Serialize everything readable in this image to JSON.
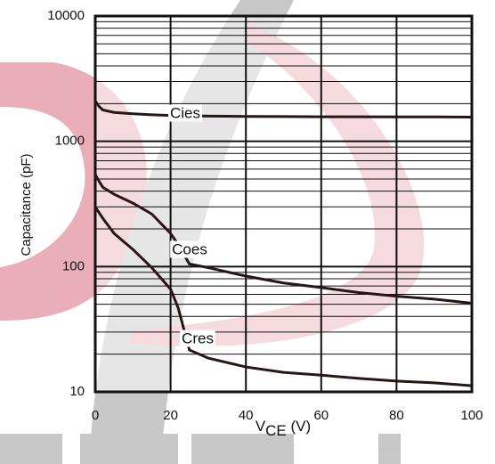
{
  "chart_data": {
    "type": "line",
    "ylabel": "Capacitance (pF)",
    "xlabel": [
      "V",
      "CE",
      " (V)"
    ],
    "x": [
      0,
      1,
      2,
      5,
      10,
      15,
      20,
      22,
      25,
      30,
      40,
      50,
      60,
      70,
      80,
      90,
      100
    ],
    "series": [
      {
        "name": "Cies",
        "color": "#2a1515",
        "values": [
          2100,
          1900,
          1780,
          1700,
          1660,
          1630,
          1610,
          1605,
          1600,
          1590,
          1580,
          1575,
          1570,
          1570,
          1565,
          1565,
          1560
        ]
      },
      {
        "name": "Coes",
        "color": "#2a1515",
        "values": [
          542,
          480,
          430,
          378,
          321,
          263,
          184,
          150,
          105,
          98,
          84,
          74,
          68,
          62,
          58,
          55,
          51
        ]
      },
      {
        "name": "Cres",
        "color": "#2a1515",
        "values": [
          300,
          270,
          243,
          184,
          137,
          98,
          66,
          47,
          21.6,
          18.6,
          15.8,
          14.3,
          13.6,
          12.8,
          12.2,
          11.8,
          11.2
        ]
      }
    ],
    "xlim": [
      0,
      100
    ],
    "xticks": [
      0,
      20,
      40,
      60,
      80,
      100
    ],
    "ylim": [
      10,
      10000
    ],
    "yticks": [
      10,
      100,
      1000,
      10000
    ],
    "yminor": [
      20,
      30,
      40,
      50,
      60,
      70,
      80,
      90,
      200,
      300,
      400,
      500,
      600,
      700,
      800,
      900,
      2000,
      3000,
      4000,
      5000,
      6000,
      7000,
      8000,
      9000
    ],
    "log_y": true,
    "grid": true
  }
}
